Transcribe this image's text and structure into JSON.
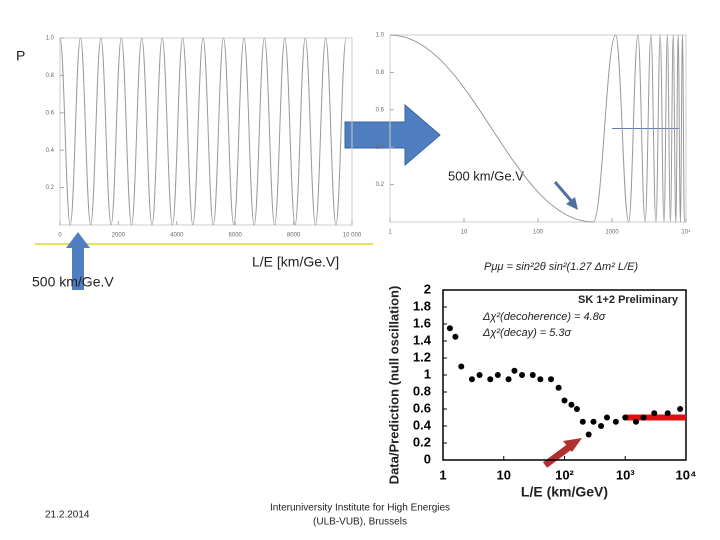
{
  "slide": {
    "p_label": "P",
    "left_note": "500 km/Ge.V",
    "right_note": "500 km/Ge.V",
    "axis_note": "L/E [km/Ge.V]",
    "formula": "Pμμ = sin²2θ sin²(1.27 Δm² L/E)",
    "date": "21.2.2014",
    "footer": [
      "Interuniversity Institute for High Energies",
      "(ULB-VUB), Brussels"
    ]
  },
  "chart_data": [
    {
      "type": "line",
      "color": "#999999",
      "x": [
        0,
        350,
        700,
        1050,
        1400,
        1750,
        2100,
        2450,
        2800,
        3150,
        3500,
        3850,
        4200,
        4550,
        4900,
        5250,
        5600,
        5950,
        6300,
        6650,
        7000,
        7350,
        7700,
        8050,
        8400,
        8750,
        9100,
        9450,
        9800
      ],
      "values": [
        1,
        0,
        1,
        0,
        1,
        0,
        1,
        0,
        1,
        0,
        1,
        0,
        1,
        0,
        1,
        0,
        1,
        0,
        1,
        0,
        1,
        0,
        1,
        0,
        1,
        0,
        1,
        0,
        1
      ],
      "xlim": [
        0,
        10000
      ],
      "xticks": [
        0,
        2000,
        4000,
        6000,
        8000,
        {
          "value": 10000,
          "label": "10 000"
        }
      ],
      "ylim": [
        0,
        1
      ],
      "yticks": [
        0.2,
        0.4,
        0.6,
        0.8,
        {
          "value": 1,
          "label": "1.0"
        }
      ]
    },
    {
      "type": "line",
      "color": "#999999",
      "log_x": true,
      "x": [
        1,
        560,
        1120,
        1680,
        2240,
        2800,
        3360,
        3920,
        4480,
        5040,
        5600,
        6160,
        6720,
        7280,
        7840,
        8400,
        8960,
        9520
      ],
      "values": [
        1,
        0,
        1,
        0,
        1,
        0,
        1,
        0,
        1,
        0,
        1,
        0,
        1,
        0,
        1,
        0,
        1,
        0
      ],
      "hline": {
        "y": 0.5,
        "x": [
          1000,
          8000
        ],
        "color": "#5b7fb0"
      },
      "xlim": [
        1,
        10000
      ],
      "xticks": [
        1,
        10,
        100,
        1000,
        {
          "value": 10000,
          "label": "10⁴"
        }
      ],
      "ylim": [
        0,
        1
      ],
      "yticks": [
        0.2,
        0.4,
        0.6,
        0.8,
        {
          "value": 1,
          "label": "1.0"
        }
      ]
    },
    {
      "type": "scatter",
      "color": "#000000",
      "log_x": true,
      "title": "SK 1+2 Preliminary",
      "y_label": "Data/Prediction (null oscillation)",
      "x_label": "L/E (km/GeV)",
      "annotations": [
        "Δχ²(decoherence) = 4.8σ",
        "Δχ²(decay) = 5.3σ"
      ],
      "x": [
        1.3,
        1.6,
        2,
        3,
        4,
        6,
        8,
        12,
        15,
        20,
        30,
        40,
        60,
        80,
        100,
        130,
        160,
        200,
        250,
        300,
        400,
        500,
        700,
        1000,
        1500,
        2000,
        3000,
        5000,
        8000
      ],
      "values": [
        1.55,
        1.45,
        1.1,
        0.95,
        1.0,
        0.95,
        1.0,
        0.95,
        1.05,
        1.0,
        1.0,
        0.95,
        0.95,
        0.85,
        0.7,
        0.65,
        0.6,
        0.45,
        0.3,
        0.45,
        0.4,
        0.5,
        0.45,
        0.5,
        0.45,
        0.5,
        0.55,
        0.55,
        0.6
      ],
      "hline": {
        "y": 0.5,
        "x": [
          1000,
          10000
        ],
        "color": "#e01010"
      },
      "xlim": [
        1,
        10000
      ],
      "xticks": [
        1,
        10,
        {
          "value": 100,
          "label": "10²"
        },
        {
          "value": 1000,
          "label": "10³"
        },
        {
          "value": 10000,
          "label": "10⁴"
        }
      ],
      "ylim": [
        0,
        2
      ],
      "yticks": [
        0,
        0.2,
        0.4,
        0.6,
        0.8,
        1,
        1.2,
        1.4,
        1.6,
        1.8,
        2
      ]
    }
  ]
}
